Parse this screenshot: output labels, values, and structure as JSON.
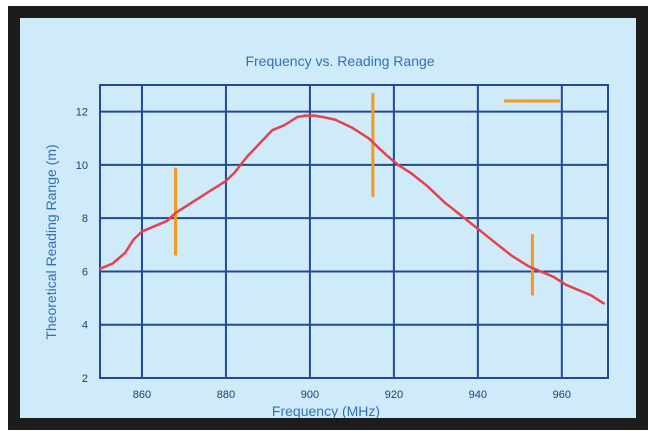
{
  "chart_data": {
    "type": "line",
    "title": "Frequency vs. Reading Range",
    "xlabel": "Frequency (MHz)",
    "ylabel": "Theoretical Reading Range (m)",
    "xlim": [
      850,
      971
    ],
    "ylim": [
      2,
      13
    ],
    "xticks": [
      860,
      880,
      900,
      920,
      940,
      960
    ],
    "yticks": [
      2,
      4,
      6,
      8,
      10,
      12
    ],
    "grid": true,
    "series": [
      {
        "color": "#e8404a",
        "x": [
          850,
          853,
          856,
          858,
          860,
          863,
          866,
          868,
          872,
          876,
          880,
          882,
          885,
          888,
          891,
          894,
          897,
          899,
          901,
          903,
          906,
          910,
          914,
          918,
          921,
          924,
          928,
          932,
          936,
          940,
          944,
          948,
          952,
          955,
          958,
          961,
          964,
          967,
          969,
          970
        ],
        "y": [
          6.1,
          6.3,
          6.7,
          7.2,
          7.5,
          7.7,
          7.9,
          8.2,
          8.6,
          9.0,
          9.4,
          9.7,
          10.3,
          10.8,
          11.3,
          11.5,
          11.8,
          11.85,
          11.85,
          11.8,
          11.7,
          11.4,
          11.0,
          10.4,
          10.0,
          9.7,
          9.2,
          8.6,
          8.1,
          7.6,
          7.1,
          6.6,
          6.2,
          6.0,
          5.8,
          5.5,
          5.3,
          5.1,
          4.9,
          4.8
        ]
      }
    ],
    "error_bars": {
      "color": "#f29a1e",
      "items": [
        {
          "x": 868,
          "low": 6.6,
          "high": 9.9
        },
        {
          "x": 915,
          "low": 8.8,
          "high": 12.7
        },
        {
          "x": 953,
          "low": 5.1,
          "high": 7.4
        }
      ]
    },
    "legend_marker": {
      "color": "#f29a1e",
      "placement": "top-right"
    }
  }
}
